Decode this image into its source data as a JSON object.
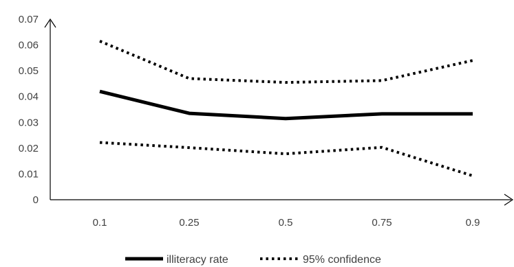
{
  "chart_data": {
    "type": "line",
    "title": "",
    "xlabel": "",
    "ylabel": "",
    "x": [
      "0.1",
      "0.25",
      "0.5",
      "0.75",
      "0.9"
    ],
    "ylim": [
      0,
      0.07
    ],
    "yticks": [
      "0",
      "0.01",
      "0.02",
      "0.03",
      "0.04",
      "0.05",
      "0.06",
      "0.07"
    ],
    "grid": false,
    "legend_position": "bottom",
    "series": [
      {
        "name": "illiteracy rate",
        "style": "solid",
        "color": "#000000",
        "values": [
          0.042,
          0.0335,
          0.0315,
          0.0333,
          0.0333
        ]
      },
      {
        "name": "95% confidence",
        "style": "dotted",
        "color": "#000000",
        "values": [
          0.0615,
          0.047,
          0.0455,
          0.0462,
          0.054
        ]
      },
      {
        "name": "95% confidence",
        "style": "dotted",
        "color": "#000000",
        "values": [
          0.0222,
          0.0202,
          0.0178,
          0.0203,
          0.0093
        ]
      }
    ],
    "legend": [
      {
        "label": "illiteracy rate",
        "style": "solid"
      },
      {
        "label": "95% confidence",
        "style": "dotted"
      }
    ]
  }
}
